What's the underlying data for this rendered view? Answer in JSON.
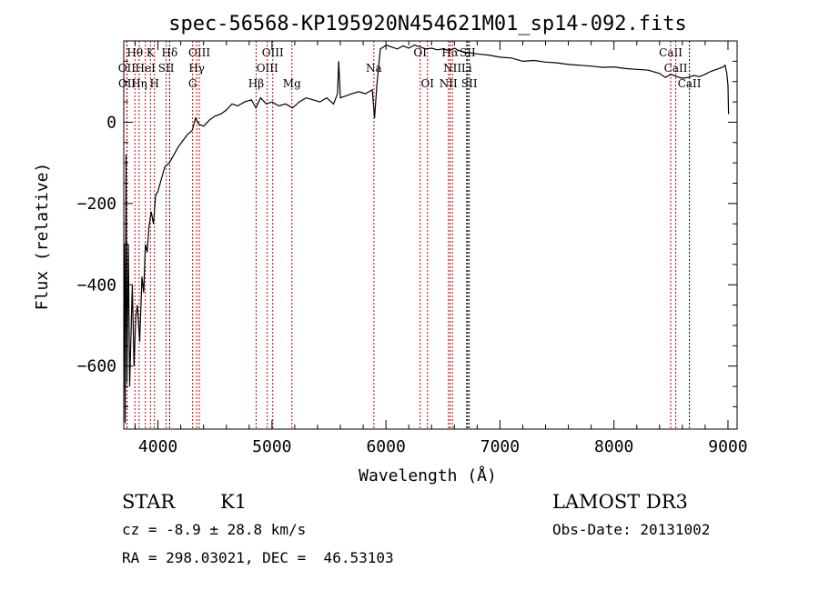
{
  "chart_data": {
    "type": "line",
    "title": "spec-56568-KP195920N454621M01_sp14-092.fits",
    "xlabel": "Wavelength (Å)",
    "ylabel": "Flux (relative)",
    "xlim": [
      3700,
      9080
    ],
    "ylim": [
      -755,
      200
    ],
    "xticks": [
      4000,
      5000,
      6000,
      7000,
      8000,
      9000
    ],
    "yticks": [
      -600,
      -400,
      -200,
      0
    ],
    "series": [
      {
        "name": "flux",
        "x": [
          3705,
          3712,
          3720,
          3728,
          3740,
          3752,
          3760,
          3775,
          3790,
          3805,
          3820,
          3840,
          3860,
          3875,
          3890,
          3905,
          3920,
          3940,
          3960,
          3980,
          4000,
          4030,
          4060,
          4100,
          4140,
          4180,
          4220,
          4260,
          4300,
          4330,
          4360,
          4400,
          4450,
          4500,
          4550,
          4600,
          4650,
          4700,
          4760,
          4820,
          4860,
          4900,
          4950,
          5000,
          5060,
          5120,
          5180,
          5240,
          5300,
          5360,
          5420,
          5480,
          5540,
          5575,
          5585,
          5600,
          5650,
          5700,
          5760,
          5820,
          5880,
          5900,
          5920,
          5950,
          5980,
          6000,
          6050,
          6100,
          6150,
          6200,
          6250,
          6300,
          6350,
          6400,
          6450,
          6500,
          6560,
          6600,
          6650,
          6700,
          6750,
          6800,
          6900,
          7000,
          7100,
          7200,
          7300,
          7400,
          7500,
          7600,
          7700,
          7800,
          7900,
          8000,
          8100,
          8200,
          8300,
          8400,
          8450,
          8500,
          8550,
          8600,
          8650,
          8700,
          8750,
          8800,
          8850,
          8900,
          8950,
          8975,
          8990,
          9000,
          9005
        ],
        "y": [
          -300,
          -740,
          -80,
          -640,
          -300,
          -650,
          -560,
          -400,
          -600,
          -480,
          -450,
          -540,
          -380,
          -420,
          -300,
          -320,
          -260,
          -220,
          -250,
          -180,
          -170,
          -140,
          -110,
          -100,
          -80,
          -60,
          -45,
          -30,
          -20,
          10,
          -5,
          -10,
          5,
          15,
          20,
          30,
          45,
          40,
          50,
          55,
          35,
          60,
          45,
          50,
          40,
          45,
          35,
          50,
          60,
          55,
          50,
          60,
          45,
          70,
          150,
          60,
          65,
          70,
          75,
          70,
          80,
          10,
          90,
          180,
          185,
          190,
          185,
          180,
          188,
          182,
          190,
          185,
          180,
          182,
          178,
          180,
          176,
          182,
          175,
          172,
          170,
          168,
          165,
          160,
          158,
          150,
          152,
          148,
          146,
          142,
          140,
          138,
          135,
          136,
          132,
          130,
          128,
          120,
          110,
          118,
          112,
          108,
          110,
          115,
          112,
          118,
          125,
          130,
          135,
          140,
          120,
          90,
          20
        ]
      }
    ],
    "lines": [
      {
        "label": "Hθ",
        "wave": 3798,
        "row": 1,
        "color": "#c00000"
      },
      {
        "label": "K",
        "wave": 3934,
        "row": 1,
        "color": "#c00000"
      },
      {
        "label": "Hδ",
        "wave": 4102,
        "row": 1,
        "color": "#000000"
      },
      {
        "label": "OIII",
        "wave": 4363,
        "row": 1,
        "color": "#c00000"
      },
      {
        "label": "OIII",
        "wave": 5007,
        "row": 1,
        "color": "#c00000"
      },
      {
        "label": "OI",
        "wave": 6300,
        "row": 1,
        "color": "#c00000"
      },
      {
        "label": "Hα",
        "wave": 6563,
        "row": 1,
        "color": "#c00000"
      },
      {
        "label": "SII",
        "wave": 6716,
        "row": 1,
        "color": "#000000"
      },
      {
        "label": "CaII",
        "wave": 8498,
        "row": 1,
        "color": "#c00000"
      },
      {
        "label": "OII",
        "wave": 3727,
        "row": 2,
        "color": "#c00000"
      },
      {
        "label": "HeI",
        "wave": 3889,
        "row": 2,
        "color": "#c00000"
      },
      {
        "label": "SII",
        "wave": 4072,
        "row": 2,
        "color": "#c00000"
      },
      {
        "label": "Hγ",
        "wave": 4340,
        "row": 2,
        "color": "#c00000"
      },
      {
        "label": "OIII",
        "wave": 4959,
        "row": 2,
        "color": "#c00000"
      },
      {
        "label": "Na",
        "wave": 5894,
        "row": 2,
        "color": "#c00000"
      },
      {
        "label": "NII",
        "wave": 6583,
        "row": 2,
        "color": "#c00000"
      },
      {
        "label": "Li",
        "wave": 6708,
        "row": 2,
        "color": "#000000"
      },
      {
        "label": "CaII",
        "wave": 8542,
        "row": 2,
        "color": "#c00000"
      },
      {
        "label": "OII",
        "wave": 3729,
        "row": 3,
        "color": "#c00000"
      },
      {
        "label": "Hη",
        "wave": 3835,
        "row": 3,
        "color": "#c00000"
      },
      {
        "label": "H",
        "wave": 3969,
        "row": 3,
        "color": "#c00000"
      },
      {
        "label": "G",
        "wave": 4304,
        "row": 3,
        "color": "#c00000"
      },
      {
        "label": "Hβ",
        "wave": 4861,
        "row": 3,
        "color": "#c00000"
      },
      {
        "label": "Mg",
        "wave": 5175,
        "row": 3,
        "color": "#c00000"
      },
      {
        "label": "OI",
        "wave": 6364,
        "row": 3,
        "color": "#c00000"
      },
      {
        "label": "NII",
        "wave": 6548,
        "row": 3,
        "color": "#c00000"
      },
      {
        "label": "SII",
        "wave": 6731,
        "row": 3,
        "color": "#000000"
      },
      {
        "label": "CaII",
        "wave": 8662,
        "row": 3,
        "color": "#000000"
      }
    ]
  },
  "info": {
    "class": "STAR",
    "subclass": "K1",
    "survey": "LAMOST DR3",
    "cz": "cz = -8.9 ± 28.8 km/s",
    "obs_date": "Obs-Date: 20131002",
    "coords": "RA = 298.03021, DEC =  46.53103"
  }
}
